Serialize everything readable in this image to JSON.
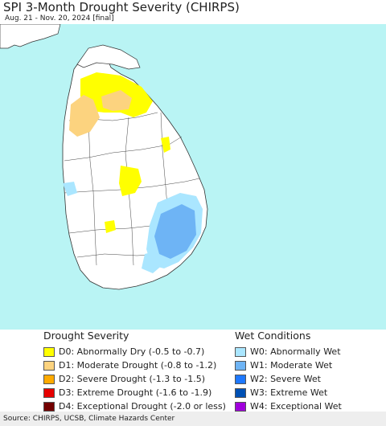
{
  "title": "SPI 3-Month Drought Severity (CHIRPS)",
  "subtitle": "Aug. 21 - Nov. 20, 2024 [final]",
  "colors": {
    "ocean": "#b9f4f4",
    "land": "#ffffff",
    "outside": "#ffffff",
    "border": "#333333"
  },
  "legend": {
    "drought": {
      "heading": "Drought Severity",
      "items": [
        {
          "label": "D0: Abnormally Dry (-0.5 to -0.7)",
          "color": "#ffff00"
        },
        {
          "label": "D1: Moderate Drought (-0.8 to -1.2)",
          "color": "#fcd37f"
        },
        {
          "label": "D2: Severe Drought (-1.3 to -1.5)",
          "color": "#ffaa00"
        },
        {
          "label": "D3: Extreme Drought (-1.6 to -1.9)",
          "color": "#e60000"
        },
        {
          "label": "D4: Exceptional Drought (-2.0 or less)",
          "color": "#730000"
        }
      ]
    },
    "wet": {
      "heading": "Wet Conditions",
      "items": [
        {
          "label": "W0: Abnormally Wet",
          "color": "#aae6ff"
        },
        {
          "label": "W1: Moderate Wet",
          "color": "#6eb4f5"
        },
        {
          "label": "W2: Severe Wet",
          "color": "#1e78ff"
        },
        {
          "label": "W3: Extreme Wet",
          "color": "#0050b4"
        },
        {
          "label": "W4: Exceptional Wet",
          "color": "#a000dc"
        }
      ]
    }
  },
  "source": "Source: CHIRPS, UCSB, Climate Hazards Center"
}
